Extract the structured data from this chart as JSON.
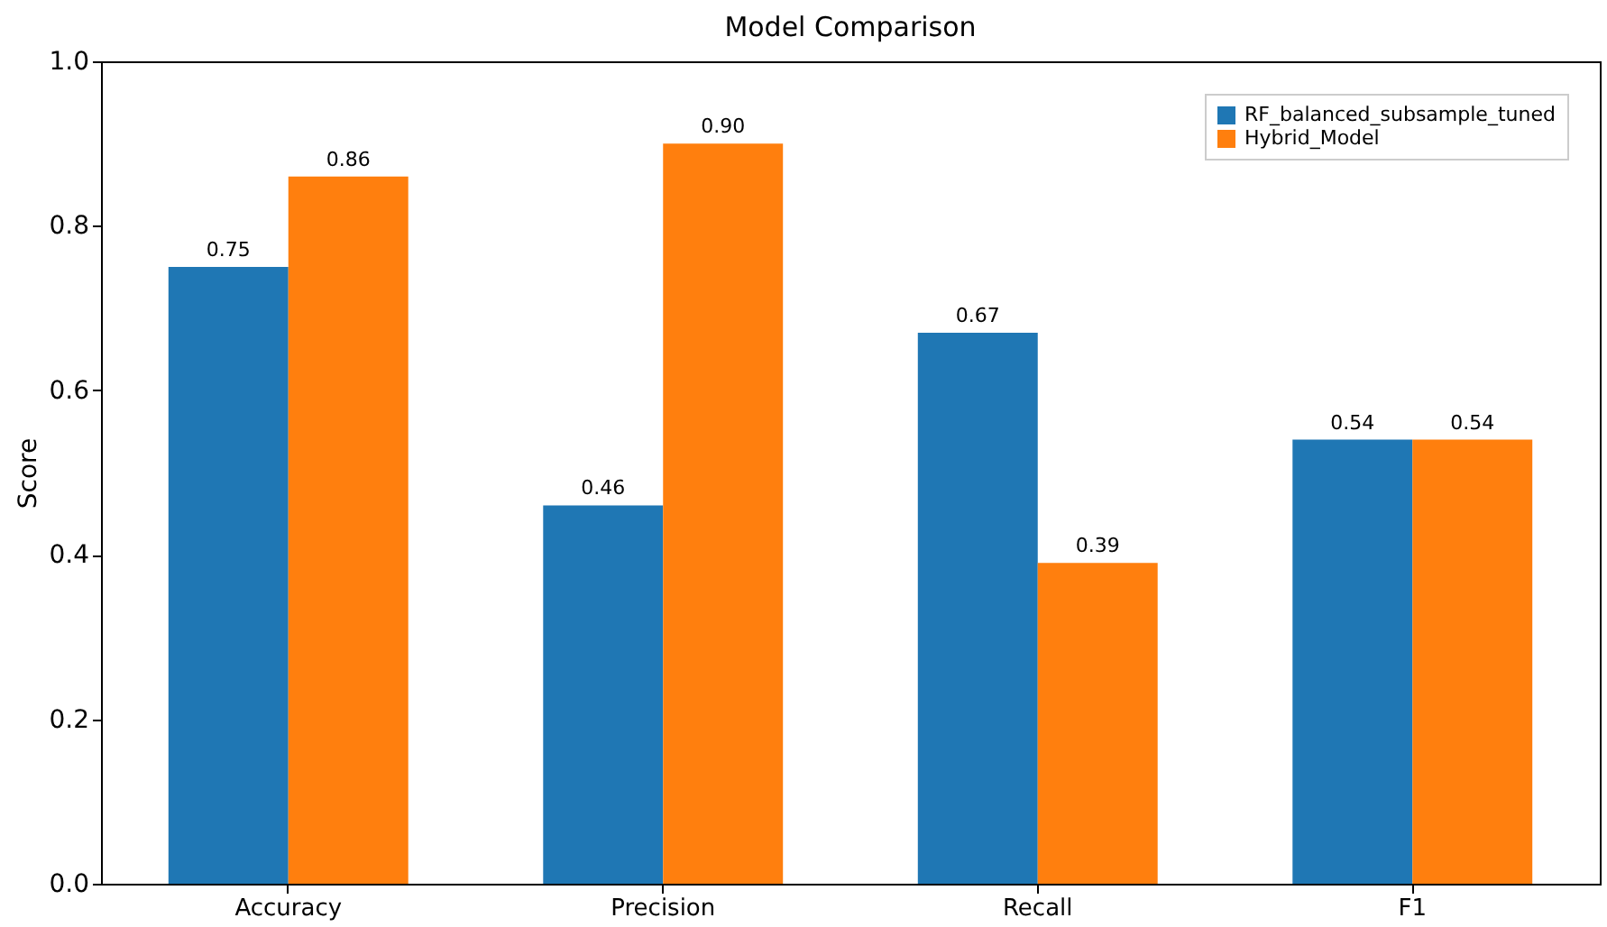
{
  "chart_data": {
    "type": "bar",
    "title": "Model Comparison",
    "ylabel": "Score",
    "categories": [
      "Accuracy",
      "Precision",
      "Recall",
      "F1"
    ],
    "series": [
      {
        "name": "RF_balanced_subsample_tuned",
        "color": "#1f77b4",
        "values": [
          0.75,
          0.46,
          0.67,
          0.54
        ],
        "value_labels": [
          "0.75",
          "0.46",
          "0.67",
          "0.54"
        ]
      },
      {
        "name": "Hybrid_Model",
        "color": "#ff7f0e",
        "values": [
          0.86,
          0.9,
          0.39,
          0.54
        ],
        "value_labels": [
          "0.86",
          "0.90",
          "0.39",
          "0.54"
        ]
      }
    ],
    "ylim": [
      0,
      1
    ],
    "yticks": [
      {
        "value": 0,
        "label": "0.0"
      },
      {
        "value": 0.2,
        "label": "0.2"
      },
      {
        "value": 0.4,
        "label": "0.4"
      },
      {
        "value": 0.6,
        "label": "0.6"
      },
      {
        "value": 0.8,
        "label": "0.8"
      },
      {
        "value": 1,
        "label": "1.0"
      }
    ],
    "grid": false,
    "legend": "top right"
  }
}
